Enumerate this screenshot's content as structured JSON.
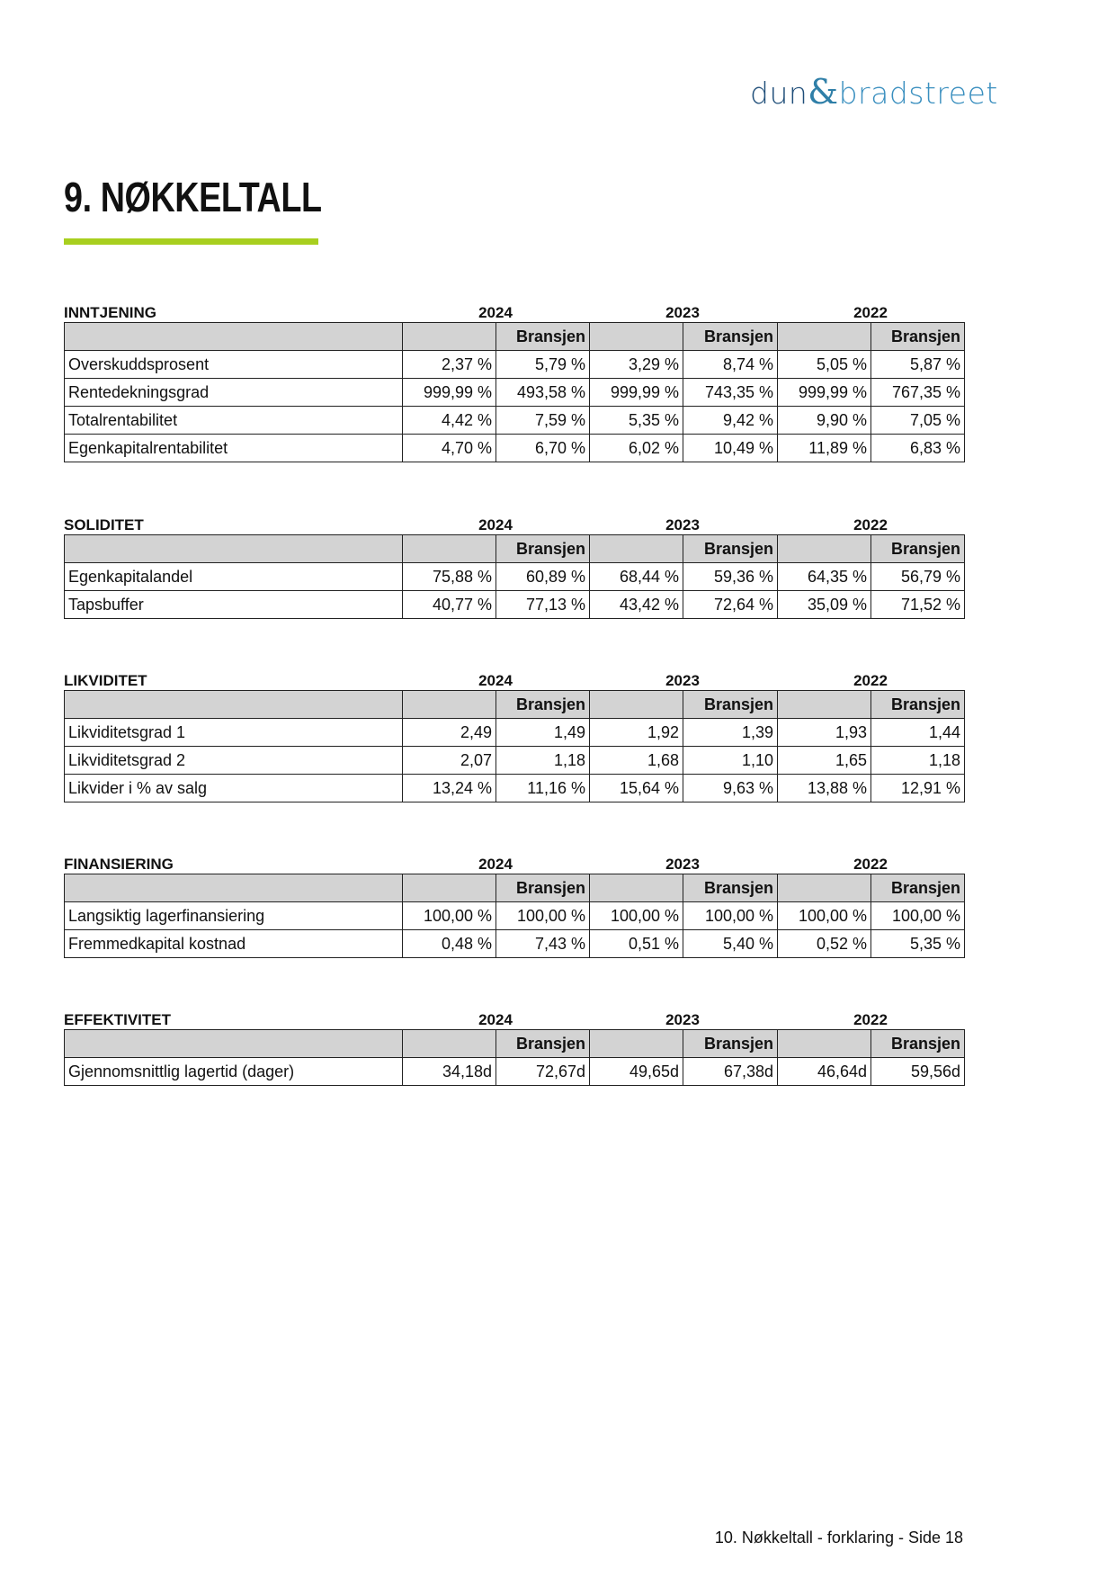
{
  "logo": {
    "text": "dun&bradstreet",
    "colors": {
      "dun": "#1f4e79",
      "bradstreet": "#3a8fbf"
    }
  },
  "page_title": "9. NØKKELTALL",
  "accent_color": "#a8cf1f",
  "column_header": "Bransjen",
  "years": [
    "2024",
    "2023",
    "2022"
  ],
  "sections": [
    {
      "name": "INNTJENING",
      "rows": [
        {
          "label": "Overskuddsprosent",
          "values": [
            "2,37 %",
            "5,79 %",
            "3,29 %",
            "8,74 %",
            "5,05 %",
            "5,87 %"
          ]
        },
        {
          "label": "Rentedekningsgrad",
          "values": [
            "999,99 %",
            "493,58 %",
            "999,99 %",
            "743,35 %",
            "999,99 %",
            "767,35 %"
          ]
        },
        {
          "label": "Totalrentabilitet",
          "values": [
            "4,42 %",
            "7,59 %",
            "5,35 %",
            "9,42 %",
            "9,90 %",
            "7,05 %"
          ]
        },
        {
          "label": "Egenkapitalrentabilitet",
          "values": [
            "4,70 %",
            "6,70 %",
            "6,02 %",
            "10,49 %",
            "11,89 %",
            "6,83 %"
          ]
        }
      ]
    },
    {
      "name": "SOLIDITET",
      "rows": [
        {
          "label": "Egenkapitalandel",
          "values": [
            "75,88 %",
            "60,89 %",
            "68,44 %",
            "59,36 %",
            "64,35 %",
            "56,79 %"
          ]
        },
        {
          "label": "Tapsbuffer",
          "values": [
            "40,77 %",
            "77,13 %",
            "43,42 %",
            "72,64 %",
            "35,09 %",
            "71,52 %"
          ]
        }
      ]
    },
    {
      "name": "LIKVIDITET",
      "rows": [
        {
          "label": "Likviditetsgrad 1",
          "values": [
            "2,49",
            "1,49",
            "1,92",
            "1,39",
            "1,93",
            "1,44"
          ]
        },
        {
          "label": "Likviditetsgrad 2",
          "values": [
            "2,07",
            "1,18",
            "1,68",
            "1,10",
            "1,65",
            "1,18"
          ]
        },
        {
          "label": "Likvider i % av salg",
          "values": [
            "13,24 %",
            "11,16 %",
            "15,64 %",
            "9,63 %",
            "13,88 %",
            "12,91 %"
          ]
        }
      ]
    },
    {
      "name": "FINANSIERING",
      "rows": [
        {
          "label": "Langsiktig lagerfinansiering",
          "values": [
            "100,00 %",
            "100,00 %",
            "100,00 %",
            "100,00 %",
            "100,00 %",
            "100,00 %"
          ]
        },
        {
          "label": "Fremmedkapital kostnad",
          "values": [
            "0,48 %",
            "7,43 %",
            "0,51 %",
            "5,40 %",
            "0,52 %",
            "5,35 %"
          ]
        }
      ]
    },
    {
      "name": "EFFEKTIVITET",
      "rows": [
        {
          "label": "Gjennomsnittlig lagertid (dager)",
          "values": [
            "34,18d",
            "72,67d",
            "49,65d",
            "67,38d",
            "46,64d",
            "59,56d"
          ]
        }
      ]
    }
  ],
  "footer": "10. Nøkkeltall - forklaring - Side 18"
}
